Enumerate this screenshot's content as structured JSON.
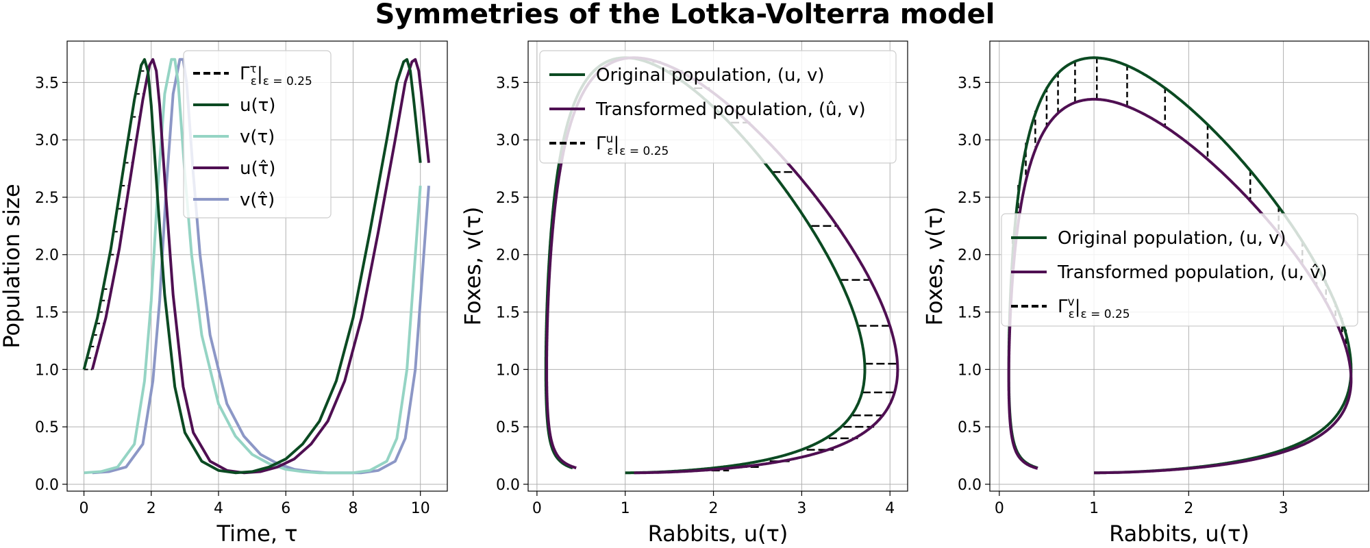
{
  "figure_title": "Symmetries of the Lotka-Volterra model",
  "colors": {
    "u_original": "#0b4a22",
    "v_original": "#95d4c4",
    "u_transformed": "#4f0f52",
    "v_transformed": "#8c97c6",
    "generator": "#000000"
  },
  "chart_data": [
    {
      "type": "line",
      "panel": "left",
      "xlabel": "Time, τ",
      "ylabel": "Population size",
      "xlim": [
        -0.5,
        10.8
      ],
      "ylim": [
        -0.06,
        3.86
      ],
      "xticks": [
        0,
        2,
        4,
        6,
        8,
        10
      ],
      "yticks": [
        0.0,
        0.5,
        1.0,
        1.5,
        2.0,
        2.5,
        3.0,
        3.5
      ],
      "grid": true,
      "legend_position": "upper-right",
      "legend": [
        {
          "text": "Γ",
          "sup": "τ",
          "sub": "ε",
          "tail": "|",
          "tailsub": "ε = 0.25",
          "style": "dashed",
          "color_key": "generator"
        },
        {
          "text": "u(τ)",
          "style": "solid",
          "color_key": "u_original"
        },
        {
          "text": "v(τ)",
          "style": "solid",
          "color_key": "v_original"
        },
        {
          "text": "u(τ̂)",
          "style": "solid",
          "color_key": "u_transformed"
        },
        {
          "text": "v(τ̂)",
          "style": "solid",
          "color_key": "v_transformed"
        }
      ],
      "series": [
        {
          "name": "u(τ)",
          "color_key": "u_original",
          "x": [
            0,
            0.4,
            0.8,
            1.2,
            1.5,
            1.7,
            1.8,
            1.9,
            2.0,
            2.2,
            2.4,
            2.7,
            3.0,
            3.5,
            4.0,
            4.5,
            5.0,
            5.5,
            6.0,
            6.5,
            7.0,
            7.5,
            8.0,
            8.5,
            9.0,
            9.3,
            9.5,
            9.6,
            9.7,
            9.8,
            10.0
          ],
          "y": [
            1.0,
            1.45,
            2.05,
            2.8,
            3.35,
            3.65,
            3.7,
            3.6,
            3.3,
            2.45,
            1.65,
            0.85,
            0.45,
            0.2,
            0.12,
            0.1,
            0.11,
            0.15,
            0.22,
            0.35,
            0.55,
            0.9,
            1.45,
            2.2,
            3.0,
            3.5,
            3.68,
            3.7,
            3.6,
            3.35,
            2.8
          ]
        },
        {
          "name": "v(τ)",
          "color_key": "v_original",
          "x": [
            0,
            0.5,
            1.0,
            1.5,
            1.8,
            2.0,
            2.2,
            2.4,
            2.6,
            2.7,
            2.8,
            3.0,
            3.2,
            3.5,
            4.0,
            4.5,
            5.0,
            5.5,
            6.0,
            6.5,
            7.0,
            7.5,
            8.0,
            8.5,
            9.0,
            9.3,
            9.6,
            9.8,
            10.0
          ],
          "y": [
            0.1,
            0.11,
            0.15,
            0.35,
            0.9,
            1.6,
            2.6,
            3.4,
            3.7,
            3.7,
            3.5,
            2.7,
            2.0,
            1.3,
            0.7,
            0.42,
            0.26,
            0.18,
            0.13,
            0.11,
            0.1,
            0.1,
            0.1,
            0.12,
            0.2,
            0.4,
            1.0,
            1.8,
            2.6
          ]
        },
        {
          "name": "u(τ̂)",
          "color_key": "u_transformed",
          "x": [
            0.25,
            0.65,
            1.05,
            1.45,
            1.75,
            1.95,
            2.05,
            2.15,
            2.25,
            2.45,
            2.65,
            2.95,
            3.25,
            3.75,
            4.25,
            4.75,
            5.25,
            5.75,
            6.25,
            6.75,
            7.25,
            7.75,
            8.25,
            8.75,
            9.25,
            9.55,
            9.75,
            9.85,
            9.95,
            10.05,
            10.25
          ],
          "y": [
            1.0,
            1.45,
            2.05,
            2.8,
            3.35,
            3.65,
            3.7,
            3.6,
            3.3,
            2.45,
            1.65,
            0.85,
            0.45,
            0.2,
            0.12,
            0.1,
            0.11,
            0.15,
            0.22,
            0.35,
            0.55,
            0.9,
            1.45,
            2.2,
            3.0,
            3.5,
            3.68,
            3.7,
            3.6,
            3.35,
            2.8
          ]
        },
        {
          "name": "v(τ̂)",
          "color_key": "v_transformed",
          "x": [
            0.25,
            0.75,
            1.25,
            1.75,
            2.05,
            2.25,
            2.45,
            2.65,
            2.85,
            2.95,
            3.05,
            3.25,
            3.45,
            3.75,
            4.25,
            4.75,
            5.25,
            5.75,
            6.25,
            6.75,
            7.25,
            7.75,
            8.25,
            8.75,
            9.25,
            9.55,
            9.85,
            10.05,
            10.25
          ],
          "y": [
            0.1,
            0.11,
            0.15,
            0.35,
            0.9,
            1.6,
            2.6,
            3.4,
            3.7,
            3.7,
            3.5,
            2.7,
            2.0,
            1.3,
            0.7,
            0.42,
            0.26,
            0.18,
            0.13,
            0.11,
            0.1,
            0.1,
            0.1,
            0.12,
            0.2,
            0.4,
            1.0,
            1.8,
            2.6
          ]
        }
      ],
      "generator_segments": {
        "description_of_source": "horizontal dashed segments from u(τ) to u(τ̂) on the rising edge",
        "y": [
          0.1,
          0.2,
          0.3,
          0.4,
          0.5,
          0.6,
          0.7,
          0.8,
          0.9,
          1.0,
          1.1,
          1.2,
          1.3,
          1.4,
          1.5,
          1.6,
          1.7,
          2.0,
          2.2,
          2.4,
          2.6,
          2.8,
          3.0,
          3.2,
          3.4,
          3.6
        ]
      }
    },
    {
      "type": "line",
      "panel": "middle",
      "xlabel": "Rabbits, u(τ)",
      "ylabel": "Foxes, v(τ)",
      "xlim": [
        -0.1,
        4.2
      ],
      "ylim": [
        -0.06,
        3.86
      ],
      "xticks": [
        0,
        1,
        2,
        3,
        4
      ],
      "yticks": [
        0.0,
        0.5,
        1.0,
        1.5,
        2.0,
        2.5,
        3.0,
        3.5
      ],
      "grid": true,
      "legend_position": "upper-left",
      "legend": [
        {
          "text": "Original population, (u, v)",
          "style": "solid",
          "color_key": "u_original"
        },
        {
          "text": "Transformed population, (û, v)",
          "style": "solid",
          "color_key": "u_transformed"
        },
        {
          "text": "Γ",
          "sup": "u",
          "sub": "ε",
          "tail": "|",
          "tailsub": "ε = 0.25",
          "style": "dashed",
          "color_key": "generator"
        }
      ],
      "series": [
        {
          "name": "Original population, (u, v)",
          "color_key": "u_original",
          "orbit": "lotka-volterra",
          "u_scale": 1.0
        },
        {
          "name": "Transformed population, (û, v)",
          "color_key": "u_transformed",
          "orbit": "lotka-volterra",
          "u_scale": 1.1
        }
      ],
      "generator_segments": {
        "direction": "horizontal",
        "v": [
          0.12,
          0.15,
          0.2,
          0.3,
          0.4,
          0.5,
          0.6,
          0.8,
          1.05,
          1.38,
          1.78,
          2.25,
          2.72,
          3.15,
          3.45,
          3.6,
          3.68
        ]
      }
    },
    {
      "type": "line",
      "panel": "right",
      "xlabel": "Rabbits, u(τ)",
      "ylabel": "Foxes, v(τ)",
      "xlim": [
        -0.1,
        3.9
      ],
      "ylim": [
        -0.06,
        3.86
      ],
      "xticks": [
        0,
        1,
        2,
        3
      ],
      "yticks": [
        0.0,
        0.5,
        1.0,
        1.5,
        2.0,
        2.5,
        3.0,
        3.5
      ],
      "grid": true,
      "legend_position": "center-right",
      "legend": [
        {
          "text": "Original population, (u, v)",
          "style": "solid",
          "color_key": "u_original"
        },
        {
          "text": "Transformed population, (u, v̂)",
          "style": "solid",
          "color_key": "u_transformed"
        },
        {
          "text": "Γ",
          "sup": "v",
          "sub": "ε",
          "tail": "|",
          "tailsub": "ε = 0.25",
          "style": "dashed",
          "color_key": "generator"
        }
      ],
      "series": [
        {
          "name": "Original population, (u, v)",
          "color_key": "u_original",
          "orbit": "lotka-volterra",
          "v_scale": 1.0
        },
        {
          "name": "Transformed population, (u, v̂)",
          "color_key": "u_transformed",
          "orbit": "lotka-volterra-vtransform"
        }
      ],
      "generator_segments": {
        "direction": "vertical",
        "u": [
          0.14,
          0.2,
          0.28,
          0.38,
          0.5,
          0.62,
          0.8,
          1.03,
          1.35,
          1.75,
          2.2,
          2.65,
          2.95,
          3.2,
          3.35,
          3.45,
          3.55,
          3.62,
          3.66
        ]
      }
    }
  ]
}
